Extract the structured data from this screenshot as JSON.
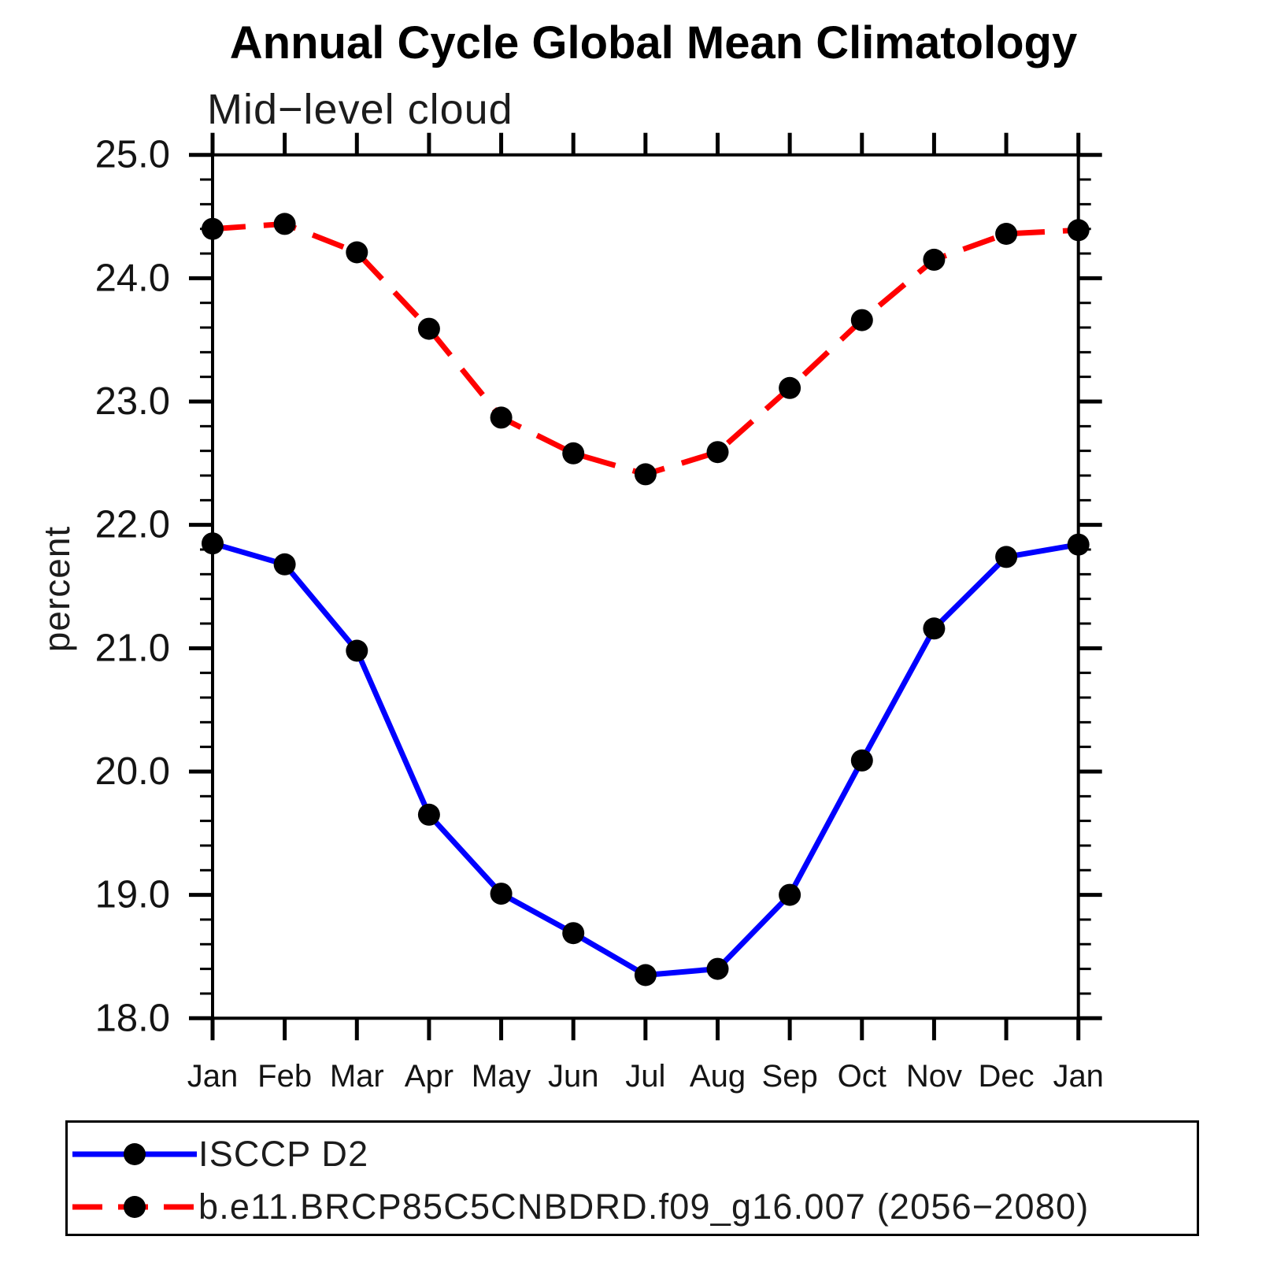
{
  "title": "Annual Cycle Global Mean Climatology",
  "subtitle": "Mid−level cloud",
  "ylabel": "percent",
  "legend": {
    "position": "bottom",
    "entries": [
      {
        "label": "ISCCP D2",
        "color": "#0000ff",
        "style": "solid",
        "marker": "circle"
      },
      {
        "label": "b.e11.BRCP85C5CNBDRD.f09_g16.007 (2056−2080)",
        "color": "#ff0000",
        "style": "dashed",
        "marker": "circle"
      }
    ]
  },
  "colors": {
    "axis": "#000000",
    "marker": "#000000",
    "background": "#ffffff",
    "blue_series": "#0000ff",
    "red_series": "#ff0000"
  },
  "chart_data": {
    "type": "line",
    "x_categories": [
      "Jan",
      "Feb",
      "Mar",
      "Apr",
      "May",
      "Jun",
      "Jul",
      "Aug",
      "Sep",
      "Oct",
      "Nov",
      "Dec",
      "Jan"
    ],
    "series": [
      {
        "name": "ISCCP D2",
        "color": "#0000ff",
        "line_style": "solid",
        "marker": "circle",
        "values": [
          21.85,
          21.68,
          20.98,
          19.65,
          19.01,
          18.69,
          18.35,
          18.4,
          19.0,
          20.09,
          21.16,
          21.74,
          21.84
        ]
      },
      {
        "name": "b.e11.BRCP85C5CNBDRD.f09_g16.007 (2056−2080)",
        "color": "#ff0000",
        "line_style": "dashed",
        "marker": "circle",
        "values": [
          24.4,
          24.44,
          24.21,
          23.59,
          22.87,
          22.58,
          22.41,
          22.59,
          23.11,
          23.66,
          24.15,
          24.36,
          24.39
        ]
      }
    ],
    "title": "Annual Cycle Global Mean Climatology",
    "subtitle": "Mid−level cloud",
    "xlabel": "",
    "ylabel": "percent",
    "ylim": [
      18.0,
      25.0
    ],
    "y_major_step": 1.0,
    "y_minor_step": 0.2,
    "y_tick_labels": [
      "18.0",
      "19.0",
      "20.0",
      "21.0",
      "22.0",
      "23.0",
      "24.0",
      "25.0"
    ],
    "grid": false,
    "legend_position": "bottom"
  }
}
